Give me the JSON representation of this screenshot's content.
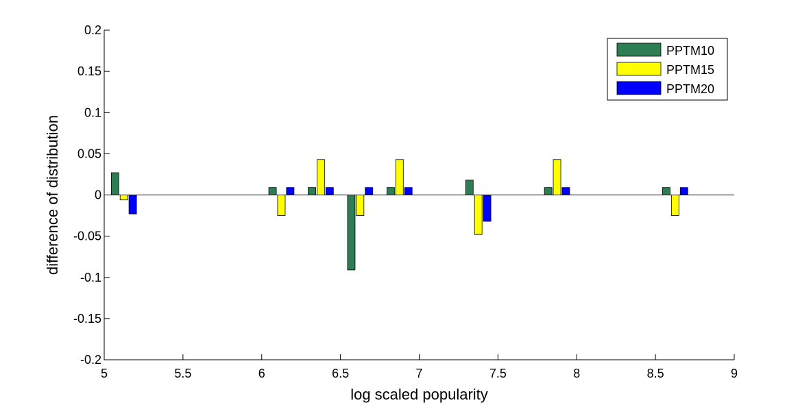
{
  "chart_data": {
    "type": "bar",
    "title": "",
    "xlabel": "log scaled popularity",
    "ylabel": "difference of distribution",
    "xlim": [
      5,
      9
    ],
    "ylim": [
      -0.2,
      0.2
    ],
    "xticks": [
      "5",
      "5.5",
      "6",
      "6.5",
      "7",
      "7.5",
      "8",
      "8.5",
      "9"
    ],
    "yticks": [
      "-0.2",
      "-0.15",
      "-0.1",
      "-0.05",
      "0",
      "0.05",
      "0.1",
      "0.15",
      "0.2"
    ],
    "grid": false,
    "legend_position": "top-right",
    "groups": [
      5.125,
      6.125,
      6.375,
      6.625,
      6.875,
      7.375,
      7.875,
      8.625
    ],
    "series": [
      {
        "name": "PPTM10",
        "color": "#2e7d55",
        "values": [
          0.027,
          0.009,
          0.009,
          -0.091,
          0.009,
          0.018,
          0.009,
          0.009
        ]
      },
      {
        "name": "PPTM15",
        "color": "#ffff00",
        "values": [
          -0.006,
          -0.025,
          0.043,
          -0.025,
          0.043,
          -0.048,
          0.043,
          -0.025
        ]
      },
      {
        "name": "PPTM20",
        "color": "#0000ff",
        "values": [
          -0.023,
          0.009,
          0.009,
          0.009,
          0.009,
          -0.032,
          0.009,
          0.009
        ]
      }
    ]
  }
}
